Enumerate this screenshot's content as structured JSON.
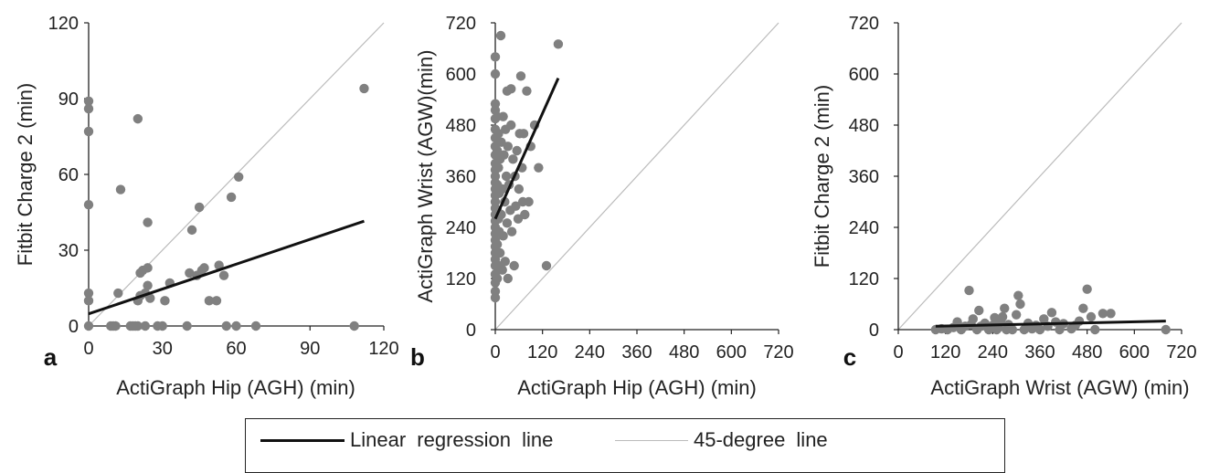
{
  "chart_data": [
    {
      "type": "scatter",
      "panel_label": "a",
      "xlabel": "ActiGraph Hip (AGH) (min)",
      "ylabel": "Fitbit Charge 2 (min)",
      "xlim": [
        0,
        120
      ],
      "ylim": [
        0,
        120
      ],
      "xticks": [
        "0",
        "30",
        "60",
        "90",
        "120"
      ],
      "yticks": [
        "0",
        "30",
        "60",
        "90",
        "120"
      ],
      "points": [
        [
          0,
          0
        ],
        [
          0,
          10
        ],
        [
          0,
          13
        ],
        [
          0,
          48
        ],
        [
          0,
          77
        ],
        [
          0,
          86
        ],
        [
          0,
          89
        ],
        [
          9,
          0
        ],
        [
          10,
          0
        ],
        [
          11,
          0
        ],
        [
          12,
          13
        ],
        [
          13,
          54
        ],
        [
          17,
          0
        ],
        [
          18,
          0
        ],
        [
          19,
          0
        ],
        [
          20,
          0
        ],
        [
          20,
          82
        ],
        [
          20,
          10
        ],
        [
          21,
          12
        ],
        [
          21,
          21
        ],
        [
          22,
          22
        ],
        [
          23,
          0
        ],
        [
          23,
          13
        ],
        [
          24,
          16
        ],
        [
          24,
          23
        ],
        [
          24,
          41
        ],
        [
          25,
          11
        ],
        [
          28,
          0
        ],
        [
          30,
          0
        ],
        [
          31,
          10
        ],
        [
          33,
          17
        ],
        [
          40,
          0
        ],
        [
          41,
          21
        ],
        [
          42,
          38
        ],
        [
          44,
          20
        ],
        [
          45,
          47
        ],
        [
          46,
          22
        ],
        [
          47,
          23
        ],
        [
          49,
          10
        ],
        [
          52,
          10
        ],
        [
          53,
          24
        ],
        [
          55,
          20
        ],
        [
          56,
          0
        ],
        [
          58,
          51
        ],
        [
          60,
          0
        ],
        [
          61,
          59
        ],
        [
          68,
          0
        ],
        [
          108,
          0
        ],
        [
          112,
          94
        ]
      ],
      "regression": {
        "x": [
          0,
          112
        ],
        "y": [
          4.8,
          41.5
        ]
      },
      "reference": {
        "x": [
          0,
          120
        ],
        "y": [
          0,
          120
        ]
      },
      "grid": false
    },
    {
      "type": "scatter",
      "panel_label": "b",
      "xlabel": "ActiGraph Hip (AGH) (min)",
      "ylabel": "ActiGraph Wrist (AGW)(min)",
      "xlim": [
        0,
        720
      ],
      "ylim": [
        0,
        720
      ],
      "xticks": [
        "0",
        "120",
        "240",
        "360",
        "480",
        "600",
        "720"
      ],
      "yticks": [
        "0",
        "120",
        "240",
        "360",
        "480",
        "600",
        "720"
      ],
      "points": [
        [
          0,
          75
        ],
        [
          0,
          90
        ],
        [
          0,
          110
        ],
        [
          0,
          130
        ],
        [
          0,
          150
        ],
        [
          0,
          165
        ],
        [
          0,
          180
        ],
        [
          0,
          195
        ],
        [
          0,
          210
        ],
        [
          0,
          225
        ],
        [
          0,
          240
        ],
        [
          0,
          255
        ],
        [
          0,
          270
        ],
        [
          0,
          285
        ],
        [
          0,
          300
        ],
        [
          0,
          315
        ],
        [
          0,
          330
        ],
        [
          0,
          345
        ],
        [
          0,
          360
        ],
        [
          0,
          375
        ],
        [
          0,
          390
        ],
        [
          0,
          410
        ],
        [
          0,
          430
        ],
        [
          0,
          450
        ],
        [
          0,
          470
        ],
        [
          0,
          495
        ],
        [
          0,
          515
        ],
        [
          0,
          530
        ],
        [
          0,
          600
        ],
        [
          0,
          640
        ],
        [
          5,
          120
        ],
        [
          5,
          200
        ],
        [
          5,
          280
        ],
        [
          5,
          340
        ],
        [
          5,
          420
        ],
        [
          5,
          500
        ],
        [
          8,
          150
        ],
        [
          8,
          260
        ],
        [
          8,
          380
        ],
        [
          8,
          460
        ],
        [
          10,
          230
        ],
        [
          10,
          320
        ],
        [
          12,
          180
        ],
        [
          12,
          400
        ],
        [
          14,
          690
        ],
        [
          15,
          270
        ],
        [
          15,
          440
        ],
        [
          18,
          140
        ],
        [
          18,
          330
        ],
        [
          20,
          220
        ],
        [
          20,
          500
        ],
        [
          22,
          410
        ],
        [
          24,
          300
        ],
        [
          25,
          160
        ],
        [
          26,
          470
        ],
        [
          28,
          360
        ],
        [
          30,
          250
        ],
        [
          30,
          560
        ],
        [
          32,
          120
        ],
        [
          32,
          430
        ],
        [
          35,
          340
        ],
        [
          38,
          280
        ],
        [
          40,
          480
        ],
        [
          40,
          565
        ],
        [
          42,
          230
        ],
        [
          45,
          400
        ],
        [
          48,
          150
        ],
        [
          50,
          360
        ],
        [
          52,
          290
        ],
        [
          55,
          420
        ],
        [
          58,
          260
        ],
        [
          60,
          330
        ],
        [
          62,
          460
        ],
        [
          65,
          595
        ],
        [
          68,
          380
        ],
        [
          70,
          300
        ],
        [
          72,
          460
        ],
        [
          75,
          270
        ],
        [
          80,
          560
        ],
        [
          85,
          300
        ],
        [
          90,
          430
        ],
        [
          100,
          480
        ],
        [
          110,
          380
        ],
        [
          130,
          150
        ],
        [
          160,
          670
        ]
      ],
      "regression": {
        "x": [
          0,
          160
        ],
        "y": [
          260,
          590
        ]
      },
      "reference": {
        "x": [
          0,
          720
        ],
        "y": [
          0,
          720
        ]
      },
      "grid": false
    },
    {
      "type": "scatter",
      "panel_label": "c",
      "xlabel": "ActiGraph Wrist (AGW) (min)",
      "ylabel": "Fitbit Charge 2 (min)",
      "xlim": [
        0,
        720
      ],
      "ylim": [
        0,
        720
      ],
      "xticks": [
        "0",
        "120",
        "240",
        "360",
        "480",
        "600",
        "720"
      ],
      "yticks": [
        "0",
        "120",
        "240",
        "360",
        "480",
        "600",
        "720"
      ],
      "points": [
        [
          95,
          0
        ],
        [
          110,
          2
        ],
        [
          125,
          0
        ],
        [
          140,
          5
        ],
        [
          150,
          18
        ],
        [
          160,
          0
        ],
        [
          170,
          8
        ],
        [
          180,
          92
        ],
        [
          185,
          12
        ],
        [
          190,
          25
        ],
        [
          200,
          0
        ],
        [
          205,
          45
        ],
        [
          210,
          8
        ],
        [
          220,
          15
        ],
        [
          230,
          0
        ],
        [
          240,
          10
        ],
        [
          245,
          28
        ],
        [
          250,
          0
        ],
        [
          255,
          5
        ],
        [
          260,
          18
        ],
        [
          265,
          30
        ],
        [
          270,
          50
        ],
        [
          275,
          0
        ],
        [
          280,
          12
        ],
        [
          285,
          2
        ],
        [
          290,
          0
        ],
        [
          300,
          35
        ],
        [
          305,
          80
        ],
        [
          310,
          60
        ],
        [
          320,
          0
        ],
        [
          330,
          15
        ],
        [
          340,
          2
        ],
        [
          350,
          10
        ],
        [
          360,
          0
        ],
        [
          370,
          25
        ],
        [
          380,
          8
        ],
        [
          390,
          40
        ],
        [
          400,
          18
        ],
        [
          410,
          0
        ],
        [
          420,
          14
        ],
        [
          440,
          2
        ],
        [
          450,
          10
        ],
        [
          460,
          20
        ],
        [
          470,
          50
        ],
        [
          480,
          95
        ],
        [
          490,
          30
        ],
        [
          500,
          0
        ],
        [
          520,
          38
        ],
        [
          540,
          38
        ],
        [
          680,
          0
        ]
      ],
      "regression": {
        "x": [
          95,
          680
        ],
        "y": [
          8,
          20
        ]
      },
      "reference": {
        "x": [
          0,
          720
        ],
        "y": [
          0,
          720
        ]
      },
      "grid": false
    }
  ],
  "legend": {
    "placement": "bottom-center",
    "regression_label": "Linear regression line",
    "reference_label": "45-degree line",
    "regression_color": "#111111",
    "reference_color": "#bbbbbb"
  },
  "colors": {
    "points": "#808080",
    "axis": "#222222"
  }
}
